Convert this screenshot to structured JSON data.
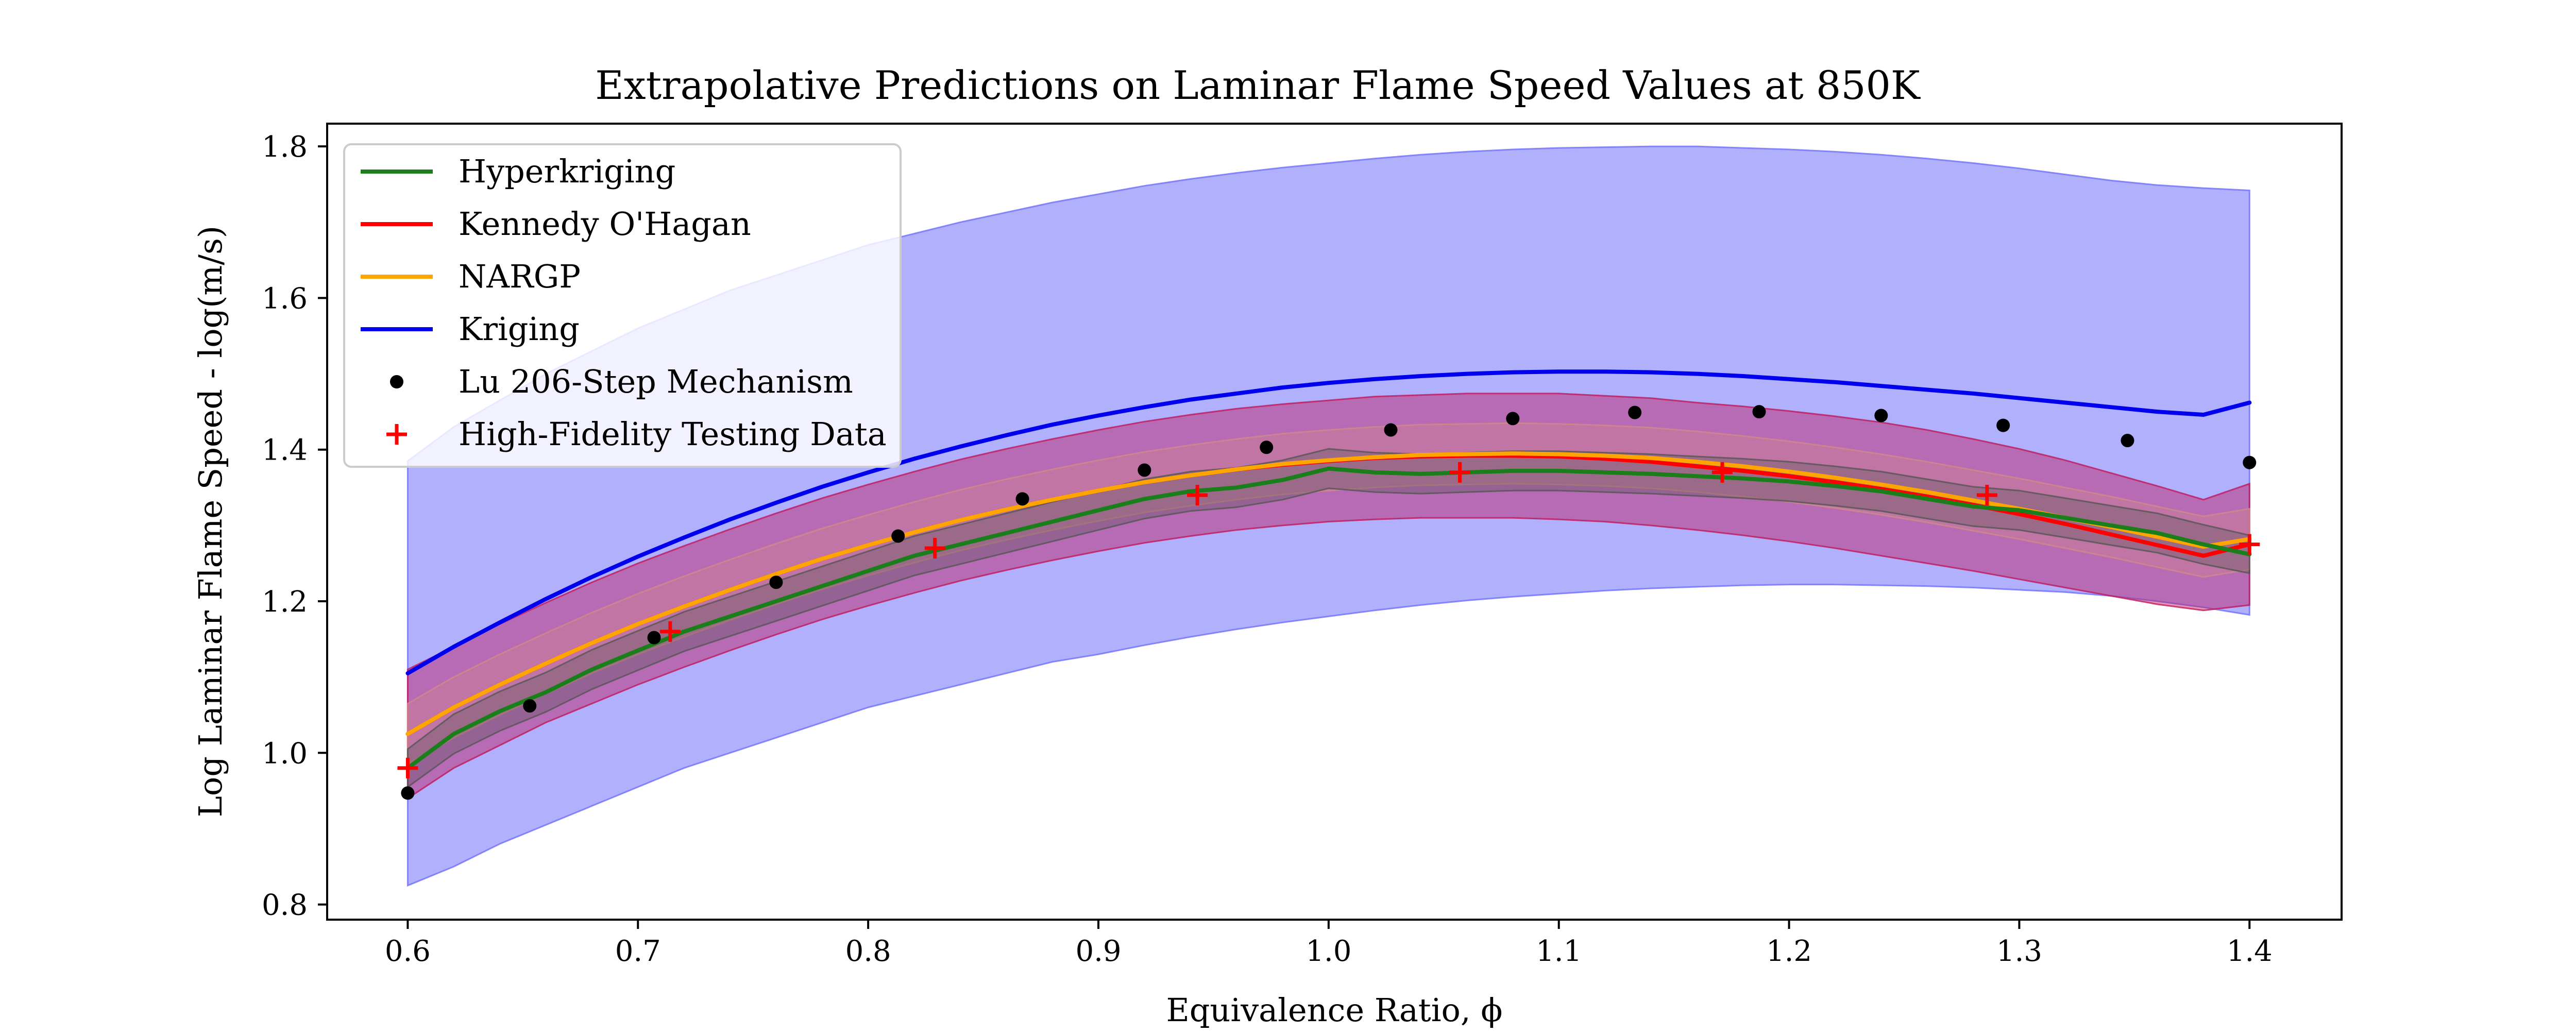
{
  "chart_data": {
    "type": "line",
    "title": "Extrapolative Predictions on Laminar Flame Speed Values at 850K",
    "xlabel": "Equivalence Ratio, ϕ",
    "ylabel": "Log Laminar Flame Speed - log(m/s)",
    "xlim": [
      0.565,
      1.44
    ],
    "ylim": [
      0.78,
      1.83
    ],
    "xticks": [
      "0.6",
      "0.7",
      "0.8",
      "0.9",
      "1.0",
      "1.1",
      "1.2",
      "1.3",
      "1.4"
    ],
    "yticks": [
      "0.8",
      "1.0",
      "1.2",
      "1.4",
      "1.6",
      "1.8"
    ],
    "grid": false,
    "legend_position": "top-left",
    "series": [
      {
        "name": "Hyperkriging",
        "kind": "line",
        "color": "#1a7f1a",
        "x": [
          0.6,
          0.62,
          0.64,
          0.66,
          0.68,
          0.7,
          0.72,
          0.74,
          0.76,
          0.78,
          0.8,
          0.82,
          0.84,
          0.86,
          0.88,
          0.9,
          0.92,
          0.94,
          0.96,
          0.98,
          1.0,
          1.02,
          1.04,
          1.06,
          1.08,
          1.1,
          1.12,
          1.14,
          1.16,
          1.18,
          1.2,
          1.22,
          1.24,
          1.26,
          1.28,
          1.3,
          1.32,
          1.34,
          1.36,
          1.38,
          1.4
        ],
        "y": [
          0.98,
          1.025,
          1.055,
          1.08,
          1.11,
          1.135,
          1.16,
          1.18,
          1.2,
          1.22,
          1.24,
          1.26,
          1.275,
          1.29,
          1.305,
          1.32,
          1.335,
          1.345,
          1.35,
          1.36,
          1.375,
          1.37,
          1.368,
          1.37,
          1.372,
          1.372,
          1.37,
          1.368,
          1.365,
          1.362,
          1.358,
          1.352,
          1.345,
          1.335,
          1.325,
          1.32,
          1.31,
          1.3,
          1.29,
          1.275,
          1.262
        ],
        "band_lower": [
          0.955,
          0.999,
          1.029,
          1.054,
          1.084,
          1.109,
          1.134,
          1.154,
          1.174,
          1.194,
          1.214,
          1.234,
          1.249,
          1.264,
          1.279,
          1.294,
          1.309,
          1.319,
          1.324,
          1.334,
          1.349,
          1.344,
          1.342,
          1.344,
          1.346,
          1.346,
          1.344,
          1.342,
          1.339,
          1.336,
          1.332,
          1.326,
          1.319,
          1.309,
          1.299,
          1.294,
          1.284,
          1.274,
          1.264,
          1.249,
          1.237
        ],
        "band_upper": [
          1.005,
          1.051,
          1.081,
          1.106,
          1.136,
          1.161,
          1.186,
          1.206,
          1.226,
          1.246,
          1.266,
          1.286,
          1.301,
          1.316,
          1.331,
          1.346,
          1.361,
          1.371,
          1.376,
          1.386,
          1.401,
          1.396,
          1.394,
          1.396,
          1.398,
          1.398,
          1.396,
          1.394,
          1.391,
          1.388,
          1.384,
          1.378,
          1.371,
          1.361,
          1.351,
          1.346,
          1.336,
          1.326,
          1.316,
          1.301,
          1.287
        ],
        "band_color": "#555555"
      },
      {
        "name": "Kennedy O'Hagan",
        "kind": "line",
        "color": "#ff0000",
        "x": [
          0.6,
          0.62,
          0.64,
          0.66,
          0.68,
          0.7,
          0.72,
          0.74,
          0.76,
          0.78,
          0.8,
          0.82,
          0.84,
          0.86,
          0.88,
          0.9,
          0.92,
          0.94,
          0.96,
          0.98,
          1.0,
          1.02,
          1.04,
          1.06,
          1.08,
          1.1,
          1.12,
          1.14,
          1.16,
          1.18,
          1.2,
          1.22,
          1.24,
          1.26,
          1.28,
          1.3,
          1.32,
          1.34,
          1.36,
          1.38,
          1.4
        ],
        "y": [
          1.025,
          1.06,
          1.09,
          1.118,
          1.145,
          1.17,
          1.193,
          1.215,
          1.236,
          1.256,
          1.274,
          1.291,
          1.307,
          1.321,
          1.334,
          1.346,
          1.357,
          1.366,
          1.374,
          1.38,
          1.385,
          1.389,
          1.391,
          1.392,
          1.392,
          1.391,
          1.388,
          1.384,
          1.378,
          1.372,
          1.365,
          1.357,
          1.348,
          1.338,
          1.327,
          1.315,
          1.302,
          1.288,
          1.274,
          1.26,
          1.275
        ],
        "band_lower": [
          0.94,
          0.98,
          1.01,
          1.04,
          1.065,
          1.09,
          1.113,
          1.135,
          1.156,
          1.176,
          1.194,
          1.211,
          1.227,
          1.241,
          1.254,
          1.266,
          1.277,
          1.286,
          1.294,
          1.3,
          1.305,
          1.308,
          1.31,
          1.31,
          1.31,
          1.308,
          1.305,
          1.3,
          1.294,
          1.287,
          1.279,
          1.27,
          1.26,
          1.25,
          1.24,
          1.229,
          1.218,
          1.207,
          1.196,
          1.188,
          1.195
        ],
        "band_upper": [
          1.11,
          1.14,
          1.17,
          1.198,
          1.225,
          1.25,
          1.273,
          1.295,
          1.316,
          1.336,
          1.354,
          1.371,
          1.387,
          1.401,
          1.414,
          1.426,
          1.437,
          1.446,
          1.454,
          1.46,
          1.465,
          1.47,
          1.472,
          1.474,
          1.474,
          1.474,
          1.471,
          1.468,
          1.462,
          1.457,
          1.451,
          1.444,
          1.436,
          1.426,
          1.414,
          1.401,
          1.386,
          1.369,
          1.352,
          1.334,
          1.355
        ],
        "band_color": "#c2185b"
      },
      {
        "name": "NARGP",
        "kind": "line",
        "color": "#ffa500",
        "x": [
          0.6,
          0.62,
          0.64,
          0.66,
          0.68,
          0.7,
          0.72,
          0.74,
          0.76,
          0.78,
          0.8,
          0.82,
          0.84,
          0.86,
          0.88,
          0.9,
          0.92,
          0.94,
          0.96,
          0.98,
          1.0,
          1.02,
          1.04,
          1.06,
          1.08,
          1.1,
          1.12,
          1.14,
          1.16,
          1.18,
          1.2,
          1.22,
          1.24,
          1.26,
          1.28,
          1.3,
          1.32,
          1.34,
          1.36,
          1.38,
          1.4
        ],
        "y": [
          1.025,
          1.06,
          1.09,
          1.118,
          1.145,
          1.17,
          1.193,
          1.215,
          1.236,
          1.256,
          1.274,
          1.291,
          1.307,
          1.321,
          1.334,
          1.346,
          1.357,
          1.366,
          1.374,
          1.381,
          1.386,
          1.39,
          1.393,
          1.394,
          1.395,
          1.394,
          1.392,
          1.389,
          1.384,
          1.378,
          1.371,
          1.363,
          1.354,
          1.344,
          1.333,
          1.322,
          1.31,
          1.298,
          1.285,
          1.272,
          1.282
        ],
        "band_lower": [
          0.985,
          1.02,
          1.05,
          1.078,
          1.105,
          1.13,
          1.153,
          1.175,
          1.196,
          1.216,
          1.234,
          1.251,
          1.267,
          1.281,
          1.294,
          1.306,
          1.317,
          1.326,
          1.334,
          1.341,
          1.346,
          1.35,
          1.353,
          1.354,
          1.355,
          1.354,
          1.352,
          1.349,
          1.344,
          1.338,
          1.331,
          1.323,
          1.314,
          1.304,
          1.293,
          1.282,
          1.27,
          1.258,
          1.245,
          1.232,
          1.242
        ],
        "band_upper": [
          1.065,
          1.1,
          1.13,
          1.158,
          1.185,
          1.21,
          1.233,
          1.255,
          1.276,
          1.296,
          1.314,
          1.331,
          1.347,
          1.361,
          1.374,
          1.386,
          1.397,
          1.406,
          1.414,
          1.421,
          1.426,
          1.43,
          1.433,
          1.434,
          1.435,
          1.434,
          1.432,
          1.429,
          1.424,
          1.418,
          1.411,
          1.403,
          1.394,
          1.384,
          1.373,
          1.362,
          1.35,
          1.338,
          1.325,
          1.312,
          1.322
        ],
        "band_color": "#d08a8a"
      },
      {
        "name": "Kriging",
        "kind": "line",
        "color": "#0000ee",
        "x": [
          0.6,
          0.62,
          0.64,
          0.66,
          0.68,
          0.7,
          0.72,
          0.74,
          0.76,
          0.78,
          0.8,
          0.82,
          0.84,
          0.86,
          0.88,
          0.9,
          0.92,
          0.94,
          0.96,
          0.98,
          1.0,
          1.02,
          1.04,
          1.06,
          1.08,
          1.1,
          1.12,
          1.14,
          1.16,
          1.18,
          1.2,
          1.22,
          1.24,
          1.26,
          1.28,
          1.3,
          1.32,
          1.34,
          1.36,
          1.38,
          1.4
        ],
        "y": [
          1.105,
          1.14,
          1.172,
          1.203,
          1.232,
          1.259,
          1.284,
          1.308,
          1.33,
          1.351,
          1.37,
          1.388,
          1.404,
          1.419,
          1.433,
          1.445,
          1.456,
          1.466,
          1.474,
          1.482,
          1.488,
          1.493,
          1.497,
          1.5,
          1.502,
          1.503,
          1.503,
          1.502,
          1.5,
          1.497,
          1.493,
          1.489,
          1.484,
          1.479,
          1.474,
          1.468,
          1.462,
          1.456,
          1.45,
          1.446,
          1.462
        ],
        "band_lower": [
          0.825,
          0.85,
          0.88,
          0.905,
          0.93,
          0.955,
          0.98,
          1.0,
          1.02,
          1.04,
          1.06,
          1.075,
          1.09,
          1.105,
          1.12,
          1.13,
          1.142,
          1.153,
          1.163,
          1.172,
          1.18,
          1.188,
          1.195,
          1.201,
          1.206,
          1.21,
          1.214,
          1.217,
          1.219,
          1.221,
          1.222,
          1.222,
          1.221,
          1.22,
          1.218,
          1.215,
          1.212,
          1.207,
          1.2,
          1.192,
          1.182
        ],
        "band_upper": [
          1.385,
          1.43,
          1.465,
          1.5,
          1.53,
          1.56,
          1.585,
          1.61,
          1.63,
          1.65,
          1.67,
          1.685,
          1.7,
          1.713,
          1.726,
          1.737,
          1.748,
          1.757,
          1.765,
          1.772,
          1.778,
          1.784,
          1.789,
          1.793,
          1.796,
          1.798,
          1.799,
          1.8,
          1.8,
          1.798,
          1.796,
          1.793,
          1.789,
          1.784,
          1.778,
          1.771,
          1.763,
          1.755,
          1.749,
          1.745,
          1.742
        ],
        "band_color": "#6f6ffb"
      },
      {
        "name": "Lu 206-Step Mechanism",
        "kind": "scatter",
        "marker": "dot",
        "color": "#000000",
        "x": [
          0.6,
          0.653,
          0.707,
          0.76,
          0.813,
          0.867,
          0.92,
          0.973,
          1.027,
          1.08,
          1.133,
          1.187,
          1.24,
          1.293,
          1.347,
          1.4
        ],
        "y": [
          0.947,
          1.062,
          1.152,
          1.225,
          1.286,
          1.335,
          1.373,
          1.403,
          1.426,
          1.441,
          1.449,
          1.45,
          1.445,
          1.432,
          1.412,
          1.383
        ]
      },
      {
        "name": "High-Fidelity Testing Data",
        "kind": "scatter",
        "marker": "plus",
        "color": "#ff0000",
        "x": [
          0.6,
          0.714,
          0.829,
          0.943,
          1.057,
          1.171,
          1.286,
          1.4
        ],
        "y": [
          0.98,
          1.16,
          1.27,
          1.34,
          1.37,
          1.37,
          1.34,
          1.275
        ]
      }
    ]
  }
}
